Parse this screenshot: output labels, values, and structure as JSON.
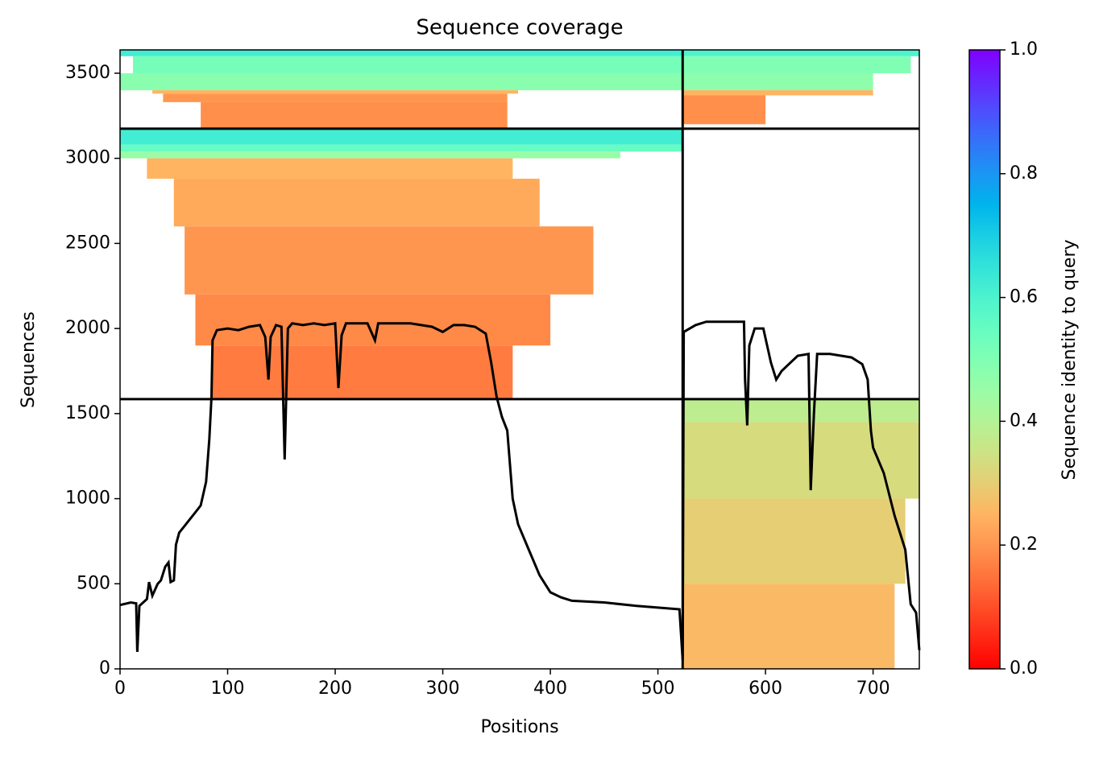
{
  "chart_data": {
    "type": "coverage",
    "title": "Sequence coverage",
    "x_label": "Positions",
    "y_label": "Sequences",
    "colorbar_label": "Sequence identity to query",
    "xlim": [
      0,
      743
    ],
    "ylim": [
      0,
      3637
    ],
    "xticks": [
      0,
      100,
      200,
      300,
      400,
      500,
      600,
      700
    ],
    "yticks": [
      0,
      500,
      1000,
      1500,
      2000,
      2500,
      3000,
      3500
    ],
    "clim": [
      0,
      1
    ],
    "cticks": [
      {
        "value": 0,
        "label": "0.0"
      },
      0.2,
      0.4,
      0.6,
      0.8,
      {
        "value": 1,
        "label": "1.0"
      }
    ],
    "boundaries": {
      "x": [
        523
      ],
      "y": [
        1585,
        3174
      ]
    },
    "blocks": [
      {
        "x": [
          0,
          523
        ],
        "y": [
          3600,
          3637
        ],
        "identity": 0.62
      },
      {
        "x": [
          12,
          523
        ],
        "y": [
          3500,
          3600
        ],
        "identity": 0.52
      },
      {
        "x": [
          0,
          523
        ],
        "y": [
          3400,
          3500
        ],
        "identity": 0.48
      },
      {
        "x": [
          30,
          370
        ],
        "y": [
          3380,
          3400
        ],
        "identity": 0.25
      },
      {
        "x": [
          40,
          360
        ],
        "y": [
          3330,
          3380
        ],
        "identity": 0.2
      },
      {
        "x": [
          75,
          360
        ],
        "y": [
          3174,
          3330
        ],
        "identity": 0.19
      },
      {
        "x": [
          523,
          743
        ],
        "y": [
          3600,
          3637
        ],
        "identity": 0.6
      },
      {
        "x": [
          523,
          735
        ],
        "y": [
          3500,
          3600
        ],
        "identity": 0.5
      },
      {
        "x": [
          523,
          700
        ],
        "y": [
          3400,
          3500
        ],
        "identity": 0.47
      },
      {
        "x": [
          523,
          700
        ],
        "y": [
          3370,
          3400
        ],
        "identity": 0.25
      },
      {
        "x": [
          523,
          600
        ],
        "y": [
          3200,
          3370
        ],
        "identity": 0.19
      },
      {
        "x": [
          0,
          523
        ],
        "y": [
          3080,
          3174
        ],
        "identity": 0.62
      },
      {
        "x": [
          0,
          523
        ],
        "y": [
          3040,
          3080
        ],
        "identity": 0.55
      },
      {
        "x": [
          0,
          465
        ],
        "y": [
          3000,
          3040
        ],
        "identity": 0.45
      },
      {
        "x": [
          25,
          365
        ],
        "y": [
          2880,
          3000
        ],
        "identity": 0.25
      },
      {
        "x": [
          50,
          390
        ],
        "y": [
          2600,
          2880
        ],
        "identity": 0.23
      },
      {
        "x": [
          60,
          440
        ],
        "y": [
          2200,
          2600
        ],
        "identity": 0.2
      },
      {
        "x": [
          70,
          400
        ],
        "y": [
          1900,
          2200
        ],
        "identity": 0.18
      },
      {
        "x": [
          85,
          365
        ],
        "y": [
          1585,
          1900
        ],
        "identity": 0.16
      },
      {
        "x": [
          523,
          743
        ],
        "y": [
          1450,
          1585
        ],
        "identity": 0.38
      },
      {
        "x": [
          523,
          743
        ],
        "y": [
          1000,
          1450
        ],
        "identity": 0.33
      },
      {
        "x": [
          523,
          730
        ],
        "y": [
          500,
          1000
        ],
        "identity": 0.3
      },
      {
        "x": [
          523,
          720
        ],
        "y": [
          0,
          500
        ],
        "identity": 0.26
      }
    ],
    "coverage": {
      "color": "#000000",
      "x": [
        0,
        10,
        15,
        16,
        18,
        25,
        27,
        30,
        35,
        38,
        42,
        45,
        47,
        50,
        52,
        55,
        60,
        65,
        70,
        75,
        80,
        83,
        85,
        86,
        90,
        100,
        110,
        120,
        130,
        135,
        138,
        140,
        145,
        150,
        153,
        156,
        160,
        170,
        180,
        190,
        200,
        203,
        206,
        210,
        220,
        230,
        237,
        240,
        250,
        260,
        270,
        280,
        290,
        300,
        310,
        320,
        330,
        340,
        345,
        350,
        355,
        360,
        365,
        370,
        380,
        390,
        400,
        410,
        420,
        450,
        480,
        520,
        523,
        524,
        535,
        545,
        580,
        581,
        583,
        585,
        590,
        598,
        605,
        610,
        615,
        620,
        630,
        640,
        642,
        645,
        648,
        660,
        680,
        690,
        695,
        698,
        700,
        710,
        720,
        730,
        735,
        740,
        743
      ],
      "y": [
        375,
        390,
        385,
        100,
        370,
        410,
        510,
        430,
        500,
        520,
        600,
        625,
        510,
        520,
        730,
        800,
        840,
        880,
        920,
        960,
        1100,
        1350,
        1600,
        1930,
        1990,
        2000,
        1990,
        2010,
        2020,
        1950,
        1700,
        1950,
        2020,
        2010,
        1230,
        2000,
        2030,
        2020,
        2030,
        2020,
        2030,
        1650,
        1960,
        2030,
        2030,
        2030,
        1930,
        2030,
        2030,
        2030,
        2030,
        2020,
        2010,
        1980,
        2020,
        2020,
        2010,
        1970,
        1800,
        1600,
        1480,
        1400,
        1000,
        850,
        700,
        550,
        450,
        420,
        400,
        390,
        370,
        350,
        50,
        1980,
        2020,
        2040,
        2040,
        1700,
        1430,
        1900,
        2000,
        2000,
        1800,
        1700,
        1750,
        1780,
        1840,
        1850,
        1050,
        1500,
        1850,
        1850,
        1830,
        1790,
        1700,
        1400,
        1300,
        1150,
        900,
        700,
        380,
        330,
        110
      ]
    }
  }
}
